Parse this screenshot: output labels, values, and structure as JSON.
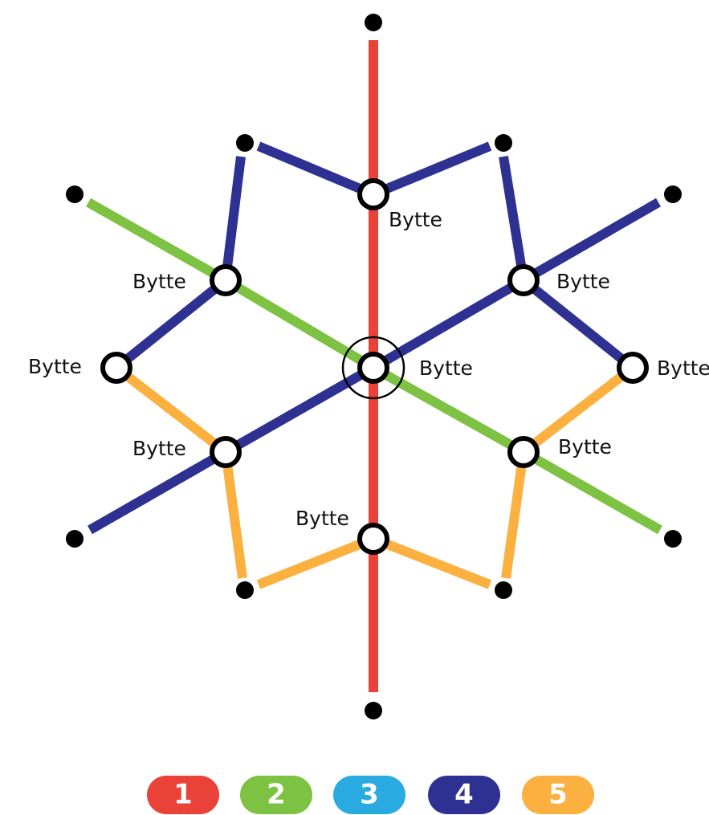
{
  "stations": [
    {
      "label": "Bytte"
    },
    {
      "label": "Bytte"
    },
    {
      "label": "Bytte"
    },
    {
      "label": "Bytte"
    },
    {
      "label": "Bytte"
    },
    {
      "label": "Bytte"
    },
    {
      "label": "Bytte"
    },
    {
      "label": "Bytte"
    },
    {
      "label": "Bytte"
    }
  ],
  "legend": [
    {
      "label": "1",
      "color": "#ea4138"
    },
    {
      "label": "2",
      "color": "#7dc242"
    },
    {
      "label": "3",
      "color": "#29abe2"
    },
    {
      "label": "4",
      "color": "#2e3192"
    },
    {
      "label": "5",
      "color": "#fbb040"
    }
  ]
}
